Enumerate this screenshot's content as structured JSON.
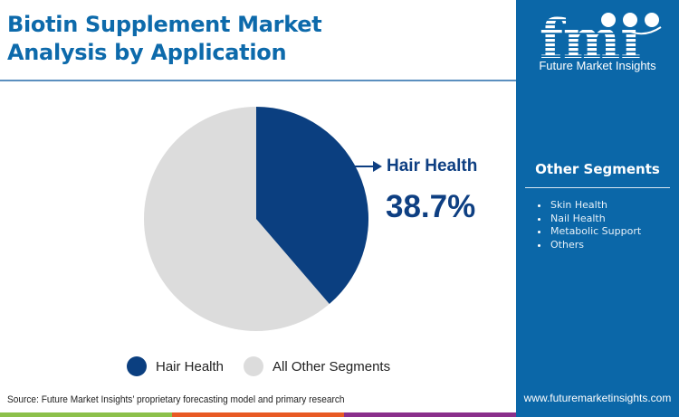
{
  "header": {
    "title_line1": "Biotin Supplement Market",
    "title_line2": "Analysis by Application"
  },
  "brand": {
    "logo_letters": "fmi",
    "logo_text": "Future Market Insights",
    "url": "www.futuremarketinsights.com"
  },
  "side_panel": {
    "heading": "Other Segments",
    "items": [
      "Skin Health",
      "Nail Health",
      "Metabolic Support",
      "Others"
    ]
  },
  "callout": {
    "label": "Hair Health",
    "value": "38.7%"
  },
  "legend": {
    "items": [
      {
        "label": "Hair Health",
        "color": "#0b3f80"
      },
      {
        "label": "All Other Segments",
        "color": "#dcdcdc"
      }
    ]
  },
  "footer": {
    "source": "Source: Future Market Insights’ proprietary forecasting model and primary research"
  },
  "colors": {
    "title": "#0d6aab",
    "panel": "#0b67a8",
    "primary_slice": "#0b3f80",
    "other_slice": "#dcdcdc",
    "bar_green": "#8cc04a",
    "bar_orange": "#e85a24",
    "bar_purple": "#8a2f8b"
  },
  "chart_data": {
    "type": "pie",
    "title": "Biotin Supplement Market Analysis by Application",
    "categories": [
      "Hair Health",
      "All Other Segments"
    ],
    "values": [
      38.7,
      61.3
    ],
    "colors": [
      "#0b3f80",
      "#dcdcdc"
    ],
    "start_angle": "12 o'clock, clockwise",
    "annotation": {
      "label": "Hair Health",
      "value": "38.7%"
    },
    "legend_position": "bottom",
    "other_segments_list": [
      "Skin Health",
      "Nail Health",
      "Metabolic Support",
      "Others"
    ]
  }
}
